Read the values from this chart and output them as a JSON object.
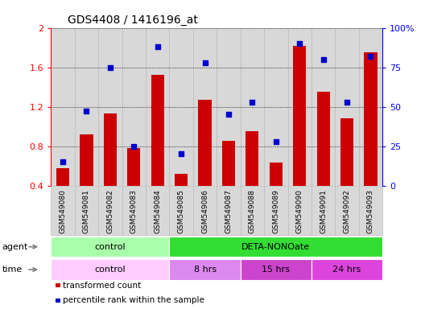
{
  "title": "GDS4408 / 1416196_at",
  "samples": [
    "GSM549080",
    "GSM549081",
    "GSM549082",
    "GSM549083",
    "GSM549084",
    "GSM549085",
    "GSM549086",
    "GSM549087",
    "GSM549088",
    "GSM549089",
    "GSM549090",
    "GSM549091",
    "GSM549092",
    "GSM549093"
  ],
  "transformed_count": [
    0.58,
    0.92,
    1.13,
    0.78,
    1.52,
    0.52,
    1.27,
    0.85,
    0.95,
    0.63,
    1.82,
    1.35,
    1.08,
    1.75
  ],
  "percentile_rank": [
    15,
    47,
    75,
    25,
    88,
    20,
    78,
    45,
    53,
    28,
    90,
    80,
    53,
    82
  ],
  "bar_color": "#cc0000",
  "dot_color": "#0000cc",
  "ymin": 0.4,
  "ymax": 2.0,
  "yticks_left": [
    0.4,
    0.8,
    1.2,
    1.6,
    2.0
  ],
  "ytick_labels_left": [
    "0.4",
    "0.8",
    "1.2",
    "1.6",
    "2"
  ],
  "y2min": 0,
  "y2max": 100,
  "y2ticks": [
    0,
    25,
    50,
    75,
    100
  ],
  "y2ticklabels": [
    "0",
    "25",
    "50",
    "75",
    "100%"
  ],
  "agent_groups": [
    {
      "label": "control",
      "start": 0,
      "end": 5,
      "color": "#aaffaa"
    },
    {
      "label": "DETA-NONOate",
      "start": 5,
      "end": 14,
      "color": "#33dd33"
    }
  ],
  "time_groups": [
    {
      "label": "control",
      "start": 0,
      "end": 5,
      "color": "#ffccff"
    },
    {
      "label": "8 hrs",
      "start": 5,
      "end": 8,
      "color": "#dd88ee"
    },
    {
      "label": "15 hrs",
      "start": 8,
      "end": 11,
      "color": "#cc44cc"
    },
    {
      "label": "24 hrs",
      "start": 11,
      "end": 14,
      "color": "#dd44dd"
    }
  ],
  "legend_items": [
    {
      "label": "transformed count",
      "color": "#cc0000"
    },
    {
      "label": "percentile rank within the sample",
      "color": "#0000cc"
    }
  ],
  "agent_label": "agent",
  "time_label": "time",
  "bar_bottom": 0.4,
  "column_bg": "#d8d8d8",
  "column_border": "#bbbbbb"
}
